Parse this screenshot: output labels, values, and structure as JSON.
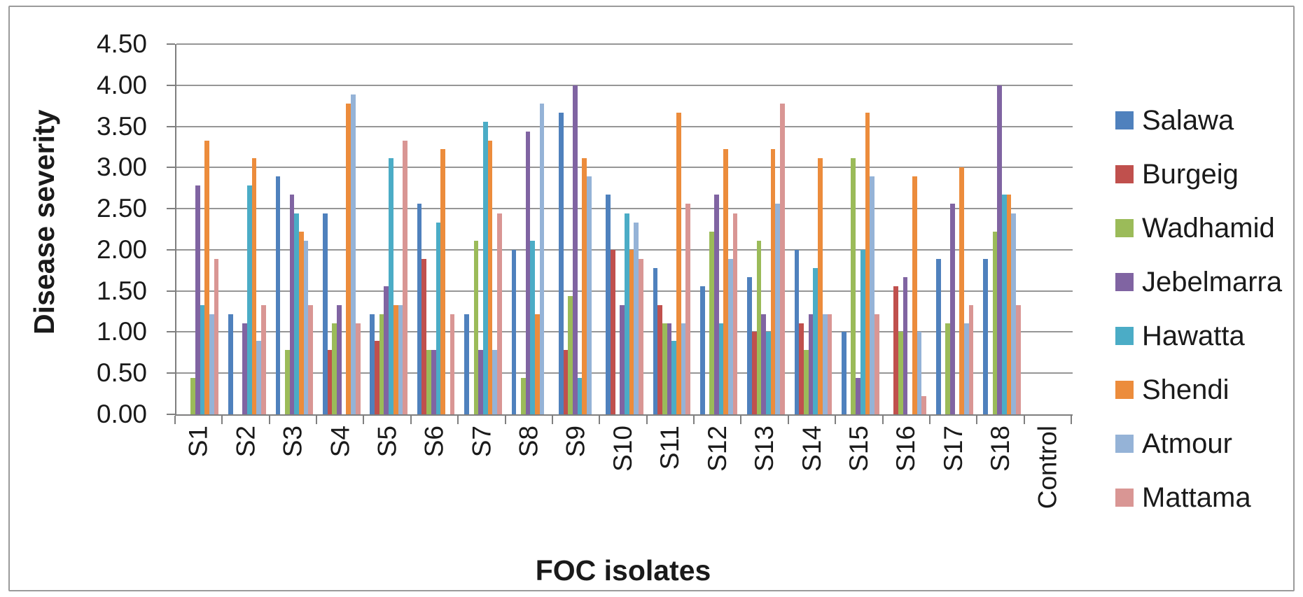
{
  "figure": {
    "background": "#FFFFFF",
    "border_color": "#9B9B9B",
    "gridline_color": "#969696",
    "axis_color": "#7F7F7F",
    "text_color": "#1A1A1A"
  },
  "chart_data": {
    "type": "bar",
    "title": "",
    "xlabel": "FOC isolates",
    "ylabel": "Disease severity",
    "ylim": [
      0,
      4.5
    ],
    "ytick_step": 0.5,
    "ytick_labels": [
      "4.50",
      "4.00",
      "3.50",
      "3.00",
      "2.50",
      "2.00",
      "1.50",
      "1.00",
      "0.50",
      "0.00"
    ],
    "grid": true,
    "legend_position": "right",
    "categories": [
      "S1",
      "S2",
      "S3",
      "S4",
      "S5",
      "S6",
      "S7",
      "S8",
      "S9",
      "S10",
      "S11",
      "S12",
      "S13",
      "S14",
      "S15",
      "S16",
      "S17",
      "S18",
      "Control"
    ],
    "series": [
      {
        "name": "Salawa",
        "color": "#4F81BD",
        "values": [
          0,
          1.22,
          2.89,
          2.44,
          1.22,
          2.56,
          1.22,
          2.0,
          3.67,
          2.67,
          1.78,
          1.56,
          1.67,
          2.0,
          1.0,
          0,
          1.89,
          1.89,
          0
        ]
      },
      {
        "name": "Burgeig",
        "color": "#C0504D",
        "values": [
          0,
          0,
          0,
          0.78,
          0.89,
          1.89,
          0,
          0,
          0.78,
          2.0,
          1.33,
          0,
          1.0,
          1.11,
          0,
          1.56,
          0,
          0,
          0
        ]
      },
      {
        "name": "Wadhamid",
        "color": "#9BBB59",
        "values": [
          0.44,
          0,
          0.78,
          1.11,
          1.22,
          0.78,
          2.11,
          0.44,
          1.44,
          0,
          1.11,
          2.22,
          2.11,
          0.78,
          3.11,
          1.0,
          1.11,
          2.22,
          0
        ]
      },
      {
        "name": "Jebelmarra",
        "color": "#8064A2",
        "values": [
          2.78,
          1.11,
          2.67,
          1.33,
          1.56,
          0.78,
          0.78,
          3.44,
          4.0,
          1.33,
          1.11,
          2.67,
          1.22,
          1.22,
          0.44,
          1.67,
          2.56,
          4.0,
          0
        ]
      },
      {
        "name": "Hawatta",
        "color": "#4BACC6",
        "values": [
          1.33,
          2.78,
          2.44,
          0,
          3.11,
          2.33,
          3.56,
          2.11,
          0.44,
          2.44,
          0.89,
          1.11,
          1.0,
          1.78,
          2.0,
          0,
          0,
          2.67,
          0
        ]
      },
      {
        "name": "Shendi",
        "color": "#EC8C3C",
        "values": [
          3.33,
          3.11,
          2.22,
          3.78,
          1.33,
          3.22,
          3.33,
          1.22,
          3.11,
          2.0,
          3.67,
          3.22,
          3.22,
          3.11,
          3.67,
          2.89,
          3.0,
          2.67,
          0
        ]
      },
      {
        "name": "Atmour",
        "color": "#95B3D7",
        "values": [
          1.22,
          0.89,
          2.11,
          3.89,
          1.33,
          0,
          0.78,
          3.78,
          2.89,
          2.33,
          1.11,
          1.89,
          2.56,
          1.22,
          2.89,
          1.0,
          1.11,
          2.44,
          0
        ]
      },
      {
        "name": "Mattama",
        "color": "#D99694",
        "values": [
          1.89,
          1.33,
          1.33,
          1.11,
          3.33,
          1.22,
          2.44,
          0,
          0,
          1.89,
          2.56,
          2.44,
          3.78,
          1.22,
          1.22,
          0.22,
          1.33,
          1.33,
          0
        ]
      }
    ]
  }
}
